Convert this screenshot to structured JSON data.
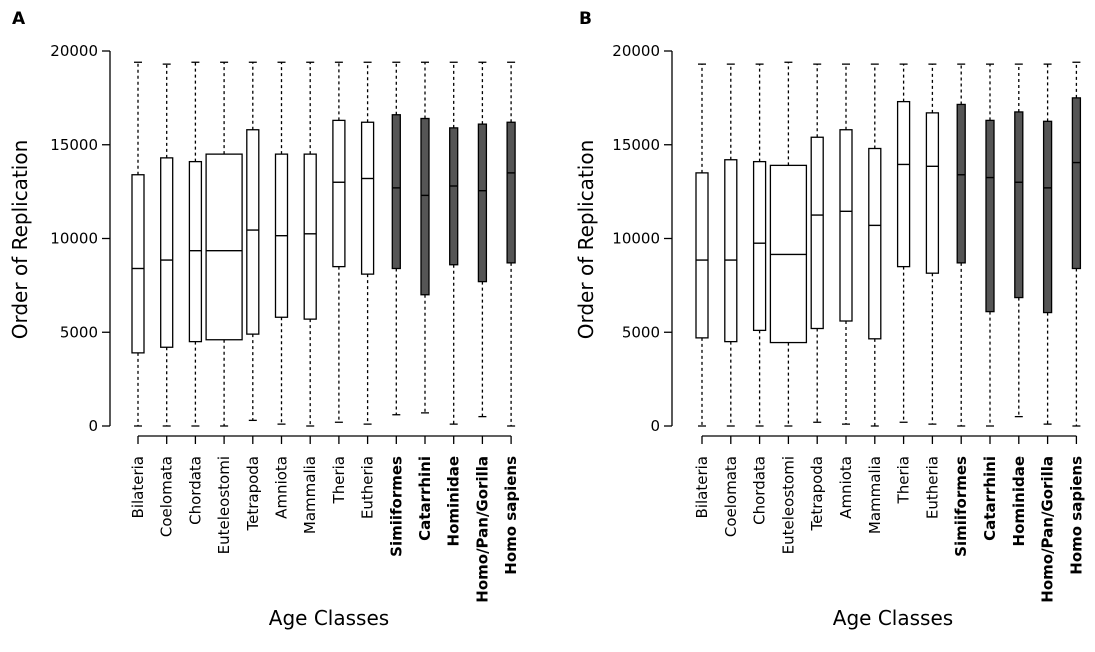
{
  "chart_data": [
    {
      "type": "boxplot",
      "panel_label": "A",
      "xlabel": "Age Classes",
      "ylabel": "Order of Replication",
      "ylim": [
        0,
        20000
      ],
      "yticks": [
        0,
        5000,
        10000,
        15000,
        20000
      ],
      "fill_colors": {
        "open": "#ffffff",
        "highlighted": "#555555"
      },
      "categories": [
        "Bilateria",
        "Coelomata",
        "Chordata",
        "Euteleostomi",
        "Tetrapoda",
        "Amniota",
        "Mammalia",
        "Theria",
        "Eutheria",
        "Simiiformes",
        "Catarrhini",
        "Hominidae",
        "Homo/Pan/Gorilla",
        "Homo sapiens"
      ],
      "highlighted": [
        false,
        false,
        false,
        false,
        false,
        false,
        false,
        false,
        false,
        true,
        true,
        true,
        true,
        true
      ],
      "boxes": [
        {
          "whisker_low": 0,
          "q1": 3900,
          "median": 8400,
          "q3": 13400,
          "whisker_high": 19400
        },
        {
          "whisker_low": 0,
          "q1": 4200,
          "median": 8850,
          "q3": 14300,
          "whisker_high": 19300
        },
        {
          "whisker_low": 0,
          "q1": 4500,
          "median": 9350,
          "q3": 14100,
          "whisker_high": 19400
        },
        {
          "whisker_low": 0,
          "q1": 4600,
          "median": 9350,
          "q3": 14500,
          "whisker_high": 19400
        },
        {
          "whisker_low": 300,
          "q1": 4900,
          "median": 10450,
          "q3": 15800,
          "whisker_high": 19400
        },
        {
          "whisker_low": 100,
          "q1": 5800,
          "median": 10150,
          "q3": 14500,
          "whisker_high": 19400
        },
        {
          "whisker_low": 0,
          "q1": 5700,
          "median": 10250,
          "q3": 14500,
          "whisker_high": 19400
        },
        {
          "whisker_low": 200,
          "q1": 8500,
          "median": 13000,
          "q3": 16300,
          "whisker_high": 19400
        },
        {
          "whisker_low": 100,
          "q1": 8100,
          "median": 13200,
          "q3": 16200,
          "whisker_high": 19400
        },
        {
          "whisker_low": 600,
          "q1": 8400,
          "median": 12700,
          "q3": 16600,
          "whisker_high": 19400
        },
        {
          "whisker_low": 700,
          "q1": 7000,
          "median": 12300,
          "q3": 16400,
          "whisker_high": 19400
        },
        {
          "whisker_low": 100,
          "q1": 8600,
          "median": 12800,
          "q3": 15900,
          "whisker_high": 19400
        },
        {
          "whisker_low": 500,
          "q1": 7700,
          "median": 12550,
          "q3": 16100,
          "whisker_high": 19400
        },
        {
          "whisker_low": 0,
          "q1": 8700,
          "median": 13500,
          "q3": 16200,
          "whisker_high": 19400
        }
      ]
    },
    {
      "type": "boxplot",
      "panel_label": "B",
      "xlabel": "Age Classes",
      "ylabel": "Order of Replication",
      "ylim": [
        0,
        20000
      ],
      "yticks": [
        0,
        5000,
        10000,
        15000,
        20000
      ],
      "fill_colors": {
        "open": "#ffffff",
        "highlighted": "#555555"
      },
      "categories": [
        "Bilateria",
        "Coelomata",
        "Chordata",
        "Euteleostomi",
        "Tetrapoda",
        "Amniota",
        "Mammalia",
        "Theria",
        "Eutheria",
        "Simiiformes",
        "Catarrhini",
        "Hominidae",
        "Homo/Pan/Gorilla",
        "Homo sapiens"
      ],
      "highlighted": [
        false,
        false,
        false,
        false,
        false,
        false,
        false,
        false,
        false,
        true,
        true,
        true,
        true,
        true
      ],
      "boxes": [
        {
          "whisker_low": 0,
          "q1": 4700,
          "median": 8850,
          "q3": 13500,
          "whisker_high": 19300
        },
        {
          "whisker_low": 0,
          "q1": 4500,
          "median": 8850,
          "q3": 14200,
          "whisker_high": 19300
        },
        {
          "whisker_low": 0,
          "q1": 5100,
          "median": 9750,
          "q3": 14100,
          "whisker_high": 19300
        },
        {
          "whisker_low": 0,
          "q1": 4450,
          "median": 9150,
          "q3": 13900,
          "whisker_high": 19400
        },
        {
          "whisker_low": 200,
          "q1": 5200,
          "median": 11250,
          "q3": 15400,
          "whisker_high": 19300
        },
        {
          "whisker_low": 100,
          "q1": 5600,
          "median": 11450,
          "q3": 15800,
          "whisker_high": 19300
        },
        {
          "whisker_low": 0,
          "q1": 4650,
          "median": 10700,
          "q3": 14800,
          "whisker_high": 19300
        },
        {
          "whisker_low": 200,
          "q1": 8500,
          "median": 13950,
          "q3": 17300,
          "whisker_high": 19300
        },
        {
          "whisker_low": 100,
          "q1": 8150,
          "median": 13850,
          "q3": 16700,
          "whisker_high": 19300
        },
        {
          "whisker_low": 0,
          "q1": 8700,
          "median": 13400,
          "q3": 17150,
          "whisker_high": 19300
        },
        {
          "whisker_low": 0,
          "q1": 6100,
          "median": 13250,
          "q3": 16300,
          "whisker_high": 19300
        },
        {
          "whisker_low": 500,
          "q1": 6850,
          "median": 13000,
          "q3": 16750,
          "whisker_high": 19300
        },
        {
          "whisker_low": 100,
          "q1": 6050,
          "median": 12700,
          "q3": 16250,
          "whisker_high": 19300
        },
        {
          "whisker_low": 0,
          "q1": 8400,
          "median": 14050,
          "q3": 17500,
          "whisker_high": 19400
        }
      ]
    }
  ]
}
